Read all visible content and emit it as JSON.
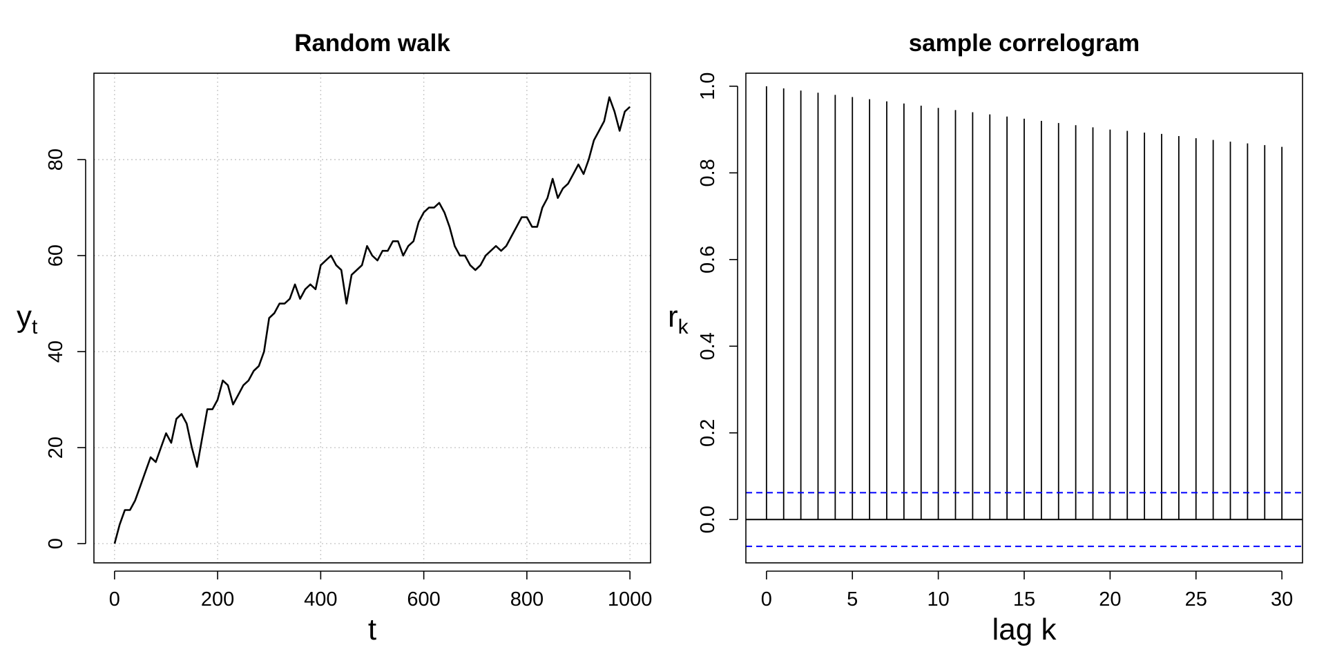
{
  "chart_data": [
    {
      "type": "line",
      "title": "Random walk",
      "xlabel": "t",
      "ylabel": {
        "main": "y",
        "subscript": "t"
      },
      "xlim": [
        -40,
        1040
      ],
      "ylim": [
        -4,
        98
      ],
      "xticks": [
        0,
        200,
        400,
        600,
        800,
        1000
      ],
      "yticks": [
        0,
        20,
        40,
        60,
        80
      ],
      "grid": true,
      "series": [
        {
          "color": "#000000",
          "x": [
            0,
            10,
            20,
            30,
            40,
            50,
            60,
            70,
            80,
            90,
            100,
            110,
            120,
            130,
            140,
            150,
            160,
            170,
            180,
            190,
            200,
            210,
            220,
            230,
            240,
            250,
            260,
            270,
            280,
            290,
            300,
            310,
            320,
            330,
            340,
            350,
            360,
            370,
            380,
            390,
            400,
            410,
            420,
            430,
            440,
            450,
            460,
            470,
            480,
            490,
            500,
            510,
            520,
            530,
            540,
            550,
            560,
            570,
            580,
            590,
            600,
            610,
            620,
            630,
            640,
            650,
            660,
            670,
            680,
            690,
            700,
            710,
            720,
            730,
            740,
            750,
            760,
            770,
            780,
            790,
            800,
            810,
            820,
            830,
            840,
            850,
            860,
            870,
            880,
            890,
            900,
            910,
            920,
            930,
            940,
            950,
            960,
            970,
            980,
            990,
            1000
          ],
          "values": [
            0,
            4,
            7,
            7,
            9,
            12,
            15,
            18,
            17,
            20,
            23,
            21,
            26,
            27,
            25,
            20,
            16,
            22,
            28,
            28,
            30,
            34,
            33,
            29,
            31,
            33,
            34,
            36,
            37,
            40,
            47,
            48,
            50,
            50,
            51,
            54,
            51,
            53,
            54,
            53,
            58,
            59,
            60,
            58,
            57,
            50,
            56,
            57,
            58,
            62,
            60,
            59,
            61,
            61,
            63,
            63,
            60,
            62,
            63,
            67,
            69,
            70,
            70,
            71,
            69,
            66,
            62,
            60,
            60,
            58,
            57,
            58,
            60,
            61,
            62,
            61,
            62,
            64,
            66,
            68,
            68,
            66,
            66,
            70,
            72,
            76,
            72,
            74,
            75,
            77,
            79,
            77,
            80,
            84,
            86,
            88,
            93,
            90,
            86,
            90,
            91
          ]
        }
      ]
    },
    {
      "type": "bar",
      "title": "sample correlogram",
      "xlabel": "lag k",
      "ylabel": {
        "main": "r",
        "subscript": "k"
      },
      "xlim": [
        -1.2,
        31.2
      ],
      "ylim": [
        -0.1,
        1.03
      ],
      "xticks": [
        0,
        5,
        10,
        15,
        20,
        25,
        30
      ],
      "yticks": [
        0.0,
        0.2,
        0.4,
        0.6,
        0.8,
        1.0
      ],
      "grid": false,
      "confidence_bound": 0.062,
      "confidence_color": "#0000ff",
      "bar_color": "#000000",
      "categories": [
        0,
        1,
        2,
        3,
        4,
        5,
        6,
        7,
        8,
        9,
        10,
        11,
        12,
        13,
        14,
        15,
        16,
        17,
        18,
        19,
        20,
        21,
        22,
        23,
        24,
        25,
        26,
        27,
        28,
        29,
        30
      ],
      "values": [
        1.0,
        0.995,
        0.99,
        0.985,
        0.98,
        0.975,
        0.97,
        0.965,
        0.96,
        0.955,
        0.95,
        0.945,
        0.94,
        0.935,
        0.93,
        0.925,
        0.92,
        0.915,
        0.91,
        0.905,
        0.9,
        0.897,
        0.893,
        0.89,
        0.885,
        0.88,
        0.876,
        0.872,
        0.868,
        0.864,
        0.86
      ]
    }
  ]
}
